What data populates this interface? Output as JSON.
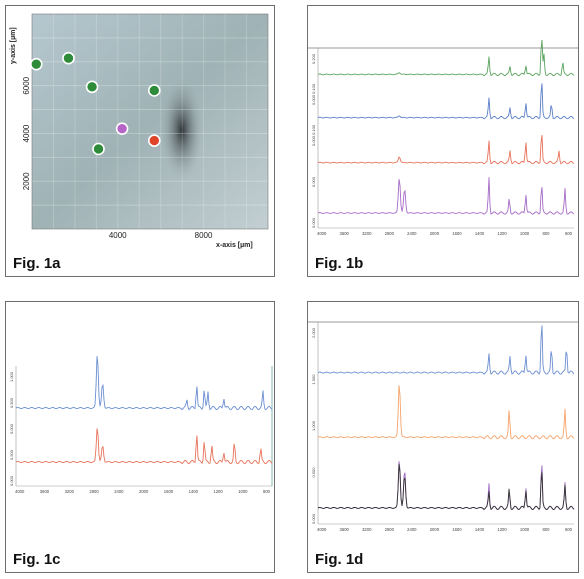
{
  "figures": [
    {
      "id": "fig1a",
      "label": "Fig. 1a"
    },
    {
      "id": "fig1b",
      "label": "Fig. 1b"
    },
    {
      "id": "fig1c",
      "label": "Fig. 1c"
    },
    {
      "id": "fig1d",
      "label": "Fig. 1d"
    }
  ],
  "chart_data": [
    {
      "type": "scatter",
      "figure": "Fig. 1a",
      "xlabel": "x-axis [µm]",
      "ylabel": "y-axis [µm]",
      "xticks": [
        4000,
        8000
      ],
      "yticks": [
        2000,
        4000,
        6000
      ],
      "xlim": [
        0,
        11000
      ],
      "ylim": [
        0,
        9000
      ],
      "background": "microscope image",
      "series": [
        {
          "color": "#2e8b3a",
          "points": [
            [
              200,
              6900
            ],
            [
              1700,
              7150
            ],
            [
              2800,
              5950
            ],
            [
              3100,
              3350
            ],
            [
              5700,
              5800
            ]
          ]
        },
        {
          "color": "#b564c8",
          "points": [
            [
              4200,
              4200
            ]
          ]
        },
        {
          "color": "#e0452a",
          "points": [
            [
              5700,
              3700
            ]
          ]
        }
      ]
    },
    {
      "type": "line",
      "figure": "Fig. 1b",
      "xlim": [
        4000,
        600
      ],
      "xticks": [
        "4000",
        "3600",
        "3200",
        "2800",
        "2400",
        "2000",
        "1600",
        "1400",
        "1200",
        "1000",
        "800",
        "600"
      ],
      "offset_labels": [
        "0.200",
        "0.000 0.100",
        "0.000 0.100",
        "0.000",
        "0.000"
      ],
      "series": [
        {
          "color": "#5aa35e",
          "peaks": [
            [
              2920,
              0.05
            ],
            [
              1730,
              0.45
            ],
            [
              1450,
              0.2
            ],
            [
              1240,
              0.25
            ],
            [
              1030,
              1.0
            ],
            [
              1000,
              0.5
            ],
            [
              750,
              0.3
            ]
          ],
          "baseline": 0.82
        },
        {
          "color": "#5b7fc9",
          "peaks": [
            [
              2920,
              0.05
            ],
            [
              1730,
              0.5
            ],
            [
              1450,
              0.25
            ],
            [
              1240,
              0.4
            ],
            [
              1030,
              1.0
            ],
            [
              900,
              0.35
            ]
          ],
          "baseline": 0.58
        },
        {
          "color": "#e8735a",
          "peaks": [
            [
              2920,
              0.15
            ],
            [
              1730,
              0.55
            ],
            [
              1450,
              0.3
            ],
            [
              1240,
              0.55
            ],
            [
              1030,
              0.8
            ],
            [
              800,
              0.3
            ]
          ],
          "baseline": 0.33
        },
        {
          "color": "#a66bc6",
          "peaks": [
            [
              2920,
              0.9
            ],
            [
              2850,
              0.6
            ],
            [
              1730,
              0.9
            ],
            [
              1460,
              0.35
            ],
            [
              1240,
              0.5
            ],
            [
              1030,
              0.75
            ],
            [
              720,
              0.6
            ]
          ],
          "baseline": 0.05
        }
      ]
    },
    {
      "type": "line",
      "figure": "Fig. 1c",
      "xlim": [
        4000,
        600
      ],
      "xticks": [
        "4000",
        "3600",
        "3200",
        "2800",
        "2400",
        "2000",
        "1600",
        "1400",
        "1200",
        "1000",
        "800"
      ],
      "offset_labels": [
        "1.000",
        "0.500",
        "0.000",
        "0.500",
        "0.000"
      ],
      "series": [
        {
          "color": "#6b8fd1",
          "peaks": [
            [
              2920,
              1.0
            ],
            [
              2850,
              0.45
            ],
            [
              1730,
              0.15
            ],
            [
              1600,
              0.45
            ],
            [
              1500,
              0.35
            ],
            [
              1450,
              0.3
            ],
            [
              1240,
              0.2
            ],
            [
              720,
              0.3
            ]
          ],
          "baseline": 0.6
        },
        {
          "color": "#e8735a",
          "peaks": [
            [
              2920,
              0.65
            ],
            [
              2850,
              0.3
            ],
            [
              1600,
              0.55
            ],
            [
              1500,
              0.4
            ],
            [
              1400,
              0.3
            ],
            [
              1240,
              0.2
            ],
            [
              1100,
              0.35
            ],
            [
              750,
              0.25
            ]
          ],
          "baseline": 0.15
        }
      ]
    },
    {
      "type": "line",
      "figure": "Fig. 1d",
      "xlim": [
        4000,
        600
      ],
      "xticks": [
        "4000",
        "3600",
        "3200",
        "2800",
        "2400",
        "2000",
        "1600",
        "1400",
        "1200",
        "1000",
        "800",
        "600"
      ],
      "offset_labels": [
        "2.000",
        "1.500",
        "1.000",
        "0.500",
        "0.000"
      ],
      "series": [
        {
          "color": "#6b8fd1",
          "peaks": [
            [
              1730,
              0.35
            ],
            [
              1450,
              0.3
            ],
            [
              1240,
              0.35
            ],
            [
              1030,
              1.0
            ],
            [
              900,
              0.45
            ],
            [
              700,
              0.5
            ]
          ],
          "baseline": 0.72
        },
        {
          "color": "#f5a36a",
          "peaks": [
            [
              2920,
              1.0
            ],
            [
              1460,
              0.5
            ],
            [
              720,
              0.5
            ]
          ],
          "baseline": 0.4
        },
        {
          "color": "#9f6ac4",
          "peaks": [
            [
              2920,
              0.9
            ],
            [
              2850,
              0.7
            ],
            [
              1730,
              0.45
            ],
            [
              1460,
              0.3
            ],
            [
              1240,
              0.4
            ],
            [
              1030,
              0.9
            ],
            [
              720,
              0.45
            ]
          ],
          "baseline": 0.05
        },
        {
          "color": "#333333",
          "peaks": [
            [
              2920,
              0.85
            ],
            [
              2850,
              0.6
            ],
            [
              1730,
              0.3
            ],
            [
              1460,
              0.35
            ],
            [
              1240,
              0.35
            ],
            [
              1030,
              0.75
            ],
            [
              720,
              0.4
            ]
          ],
          "baseline": 0.05
        }
      ]
    }
  ]
}
